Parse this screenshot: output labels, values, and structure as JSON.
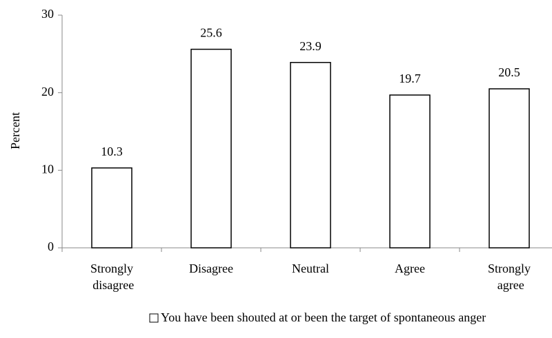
{
  "chart_data": {
    "type": "bar",
    "categories": [
      "Strongly disagree",
      "Disagree",
      "Neutral",
      "Agree",
      "Strongly agree"
    ],
    "series": [
      {
        "name": "You have been shouted at or been the target of spontaneous anger",
        "color": "#ffffff",
        "values": [
          10.3,
          25.6,
          23.9,
          19.7,
          20.5
        ]
      }
    ],
    "y_label": "Percent",
    "ylim": [
      0,
      30
    ],
    "yticks": [
      0,
      10,
      20,
      30
    ],
    "grid": false,
    "legend": "bottom"
  }
}
